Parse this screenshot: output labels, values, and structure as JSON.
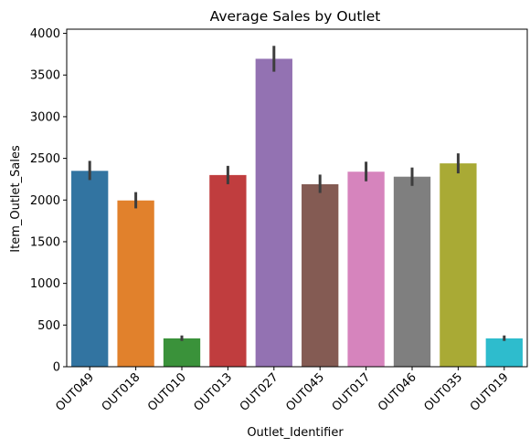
{
  "chart_data": {
    "type": "bar",
    "title": "Average Sales by Outlet",
    "xlabel": "Outlet_Identifier",
    "ylabel": "Item_Outlet_Sales",
    "ylim": [
      0,
      4050
    ],
    "yticks": [
      0,
      500,
      1000,
      1500,
      2000,
      2500,
      3000,
      3500,
      4000
    ],
    "categories": [
      "OUT049",
      "OUT018",
      "OUT010",
      "OUT013",
      "OUT027",
      "OUT045",
      "OUT017",
      "OUT046",
      "OUT035",
      "OUT019"
    ],
    "values": [
      2350,
      1995,
      340,
      2300,
      3695,
      2190,
      2340,
      2280,
      2440,
      340
    ],
    "error_low": [
      2240,
      1900,
      310,
      2190,
      3540,
      2085,
      2225,
      2170,
      2320,
      310
    ],
    "error_high": [
      2470,
      2095,
      375,
      2410,
      3850,
      2305,
      2460,
      2390,
      2560,
      375
    ],
    "colors": [
      "#3274a1",
      "#e1812c",
      "#3a923a",
      "#c03d3e",
      "#9372b2",
      "#845b53",
      "#d684bd",
      "#7f7f7f",
      "#a9aa35",
      "#2ebccd"
    ],
    "grid": false,
    "legend": "none"
  }
}
